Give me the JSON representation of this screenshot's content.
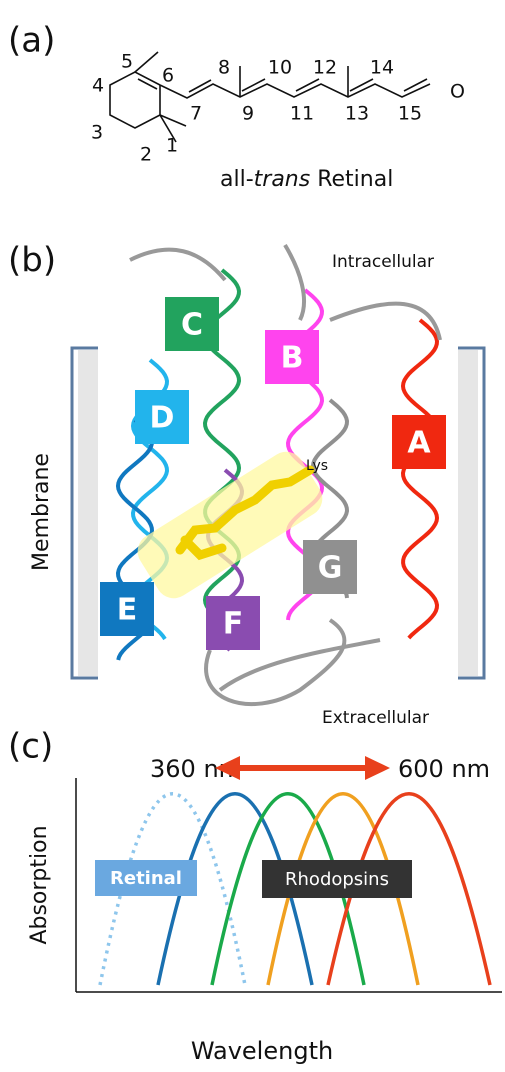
{
  "panel_a": {
    "label": "(a)",
    "atom_numbers": [
      "1",
      "2",
      "3",
      "4",
      "5",
      "6",
      "7",
      "8",
      "9",
      "10",
      "11",
      "12",
      "13",
      "14",
      "15"
    ],
    "oxygen": "O",
    "caption": {
      "prefix": "all-",
      "italic": "trans",
      "suffix": " Retinal"
    }
  },
  "panel_b": {
    "label": "(b)",
    "intracellular": "Intracellular",
    "extracellular": "Extracellular",
    "membrane": "Membrane",
    "lysine": "Lys",
    "helices": [
      {
        "label": "A",
        "color": "#f02810"
      },
      {
        "label": "B",
        "color": "#ff44ee"
      },
      {
        "label": "C",
        "color": "#22a35e"
      },
      {
        "label": "D",
        "color": "#22b4ec"
      },
      {
        "label": "E",
        "color": "#1078c0"
      },
      {
        "label": "F",
        "color": "#8a4cb0"
      },
      {
        "label": "G",
        "color": "#909090"
      }
    ]
  },
  "panel_c": {
    "label": "(c)",
    "short_wavelength": "360 nm",
    "long_wavelength": "600 nm",
    "y_axis_label": "Absorption",
    "x_axis_label": "Wavelength",
    "retinal_label": "Retinal",
    "rhodopsins_label": "Rhodopsins"
  }
}
